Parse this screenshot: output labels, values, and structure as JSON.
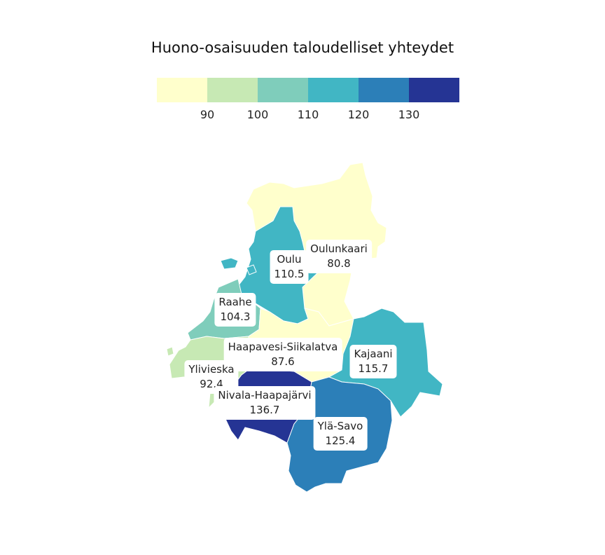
{
  "title": "Huono-osaisuuden taloudelliset yhteydet",
  "legend": {
    "colors": [
      "#ffffcc",
      "#c7e9b4",
      "#7fcdbb",
      "#41b6c4",
      "#2c7fb8",
      "#253494"
    ],
    "ticks": [
      "90",
      "100",
      "110",
      "120",
      "130"
    ]
  },
  "regions": [
    {
      "name": "Oulunkaari",
      "value": "80.8",
      "color": "#ffffcc"
    },
    {
      "name": "Oulu",
      "value": "110.5",
      "color": "#41b6c4"
    },
    {
      "name": "Raahe",
      "value": "104.3",
      "color": "#7fcdbb"
    },
    {
      "name": "Haapavesi-Siikalatva",
      "value": "87.6",
      "color": "#ffffcc"
    },
    {
      "name": "Kajaani",
      "value": "115.7",
      "color": "#41b6c4"
    },
    {
      "name": "Ylivieska",
      "value": "92.4",
      "color": "#c7e9b4"
    },
    {
      "name": "Nivala-Haapajärvi",
      "value": "136.7",
      "color": "#253494"
    },
    {
      "name": "Ylä-Savo",
      "value": "125.4",
      "color": "#2c7fb8"
    }
  ]
}
